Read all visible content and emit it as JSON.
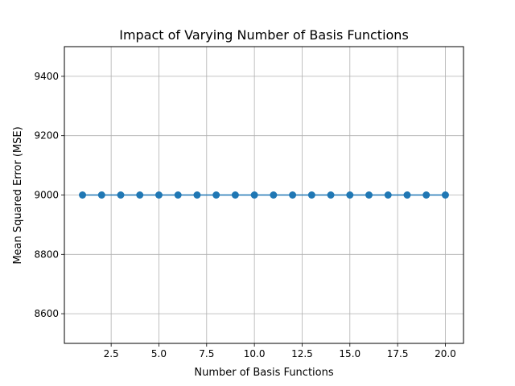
{
  "chart_data": {
    "type": "line",
    "title": "Impact of Varying Number of Basis Functions",
    "xlabel": "Number of Basis Functions",
    "ylabel": "Mean Squared Error (MSE)",
    "xlim": [
      0.05,
      20.95
    ],
    "ylim": [
      8500,
      9500
    ],
    "x_ticks": [
      2.5,
      5.0,
      7.5,
      10.0,
      12.5,
      15.0,
      17.5,
      20.0
    ],
    "x_tick_labels": [
      "2.5",
      "5.0",
      "7.5",
      "10.0",
      "12.5",
      "15.0",
      "17.5",
      "20.0"
    ],
    "y_ticks": [
      8600,
      8800,
      9000,
      9200,
      9400
    ],
    "y_tick_labels": [
      "8600",
      "8800",
      "9000",
      "9200",
      "9400"
    ],
    "grid": true,
    "colors": {
      "series": "#1f77b4",
      "grid": "#b0b0b0",
      "axis": "#000000"
    },
    "series": [
      {
        "x": [
          1,
          2,
          3,
          4,
          5,
          6,
          7,
          8,
          9,
          10,
          11,
          12,
          13,
          14,
          15,
          16,
          17,
          18,
          19,
          20
        ],
        "values": [
          9000,
          9000,
          9000,
          9000,
          9000,
          9000,
          9000,
          9000,
          9000,
          9000,
          9000,
          9000,
          9000,
          9000,
          9000,
          9000,
          9000,
          9000,
          9000,
          9000
        ],
        "marker": "circle"
      }
    ]
  }
}
